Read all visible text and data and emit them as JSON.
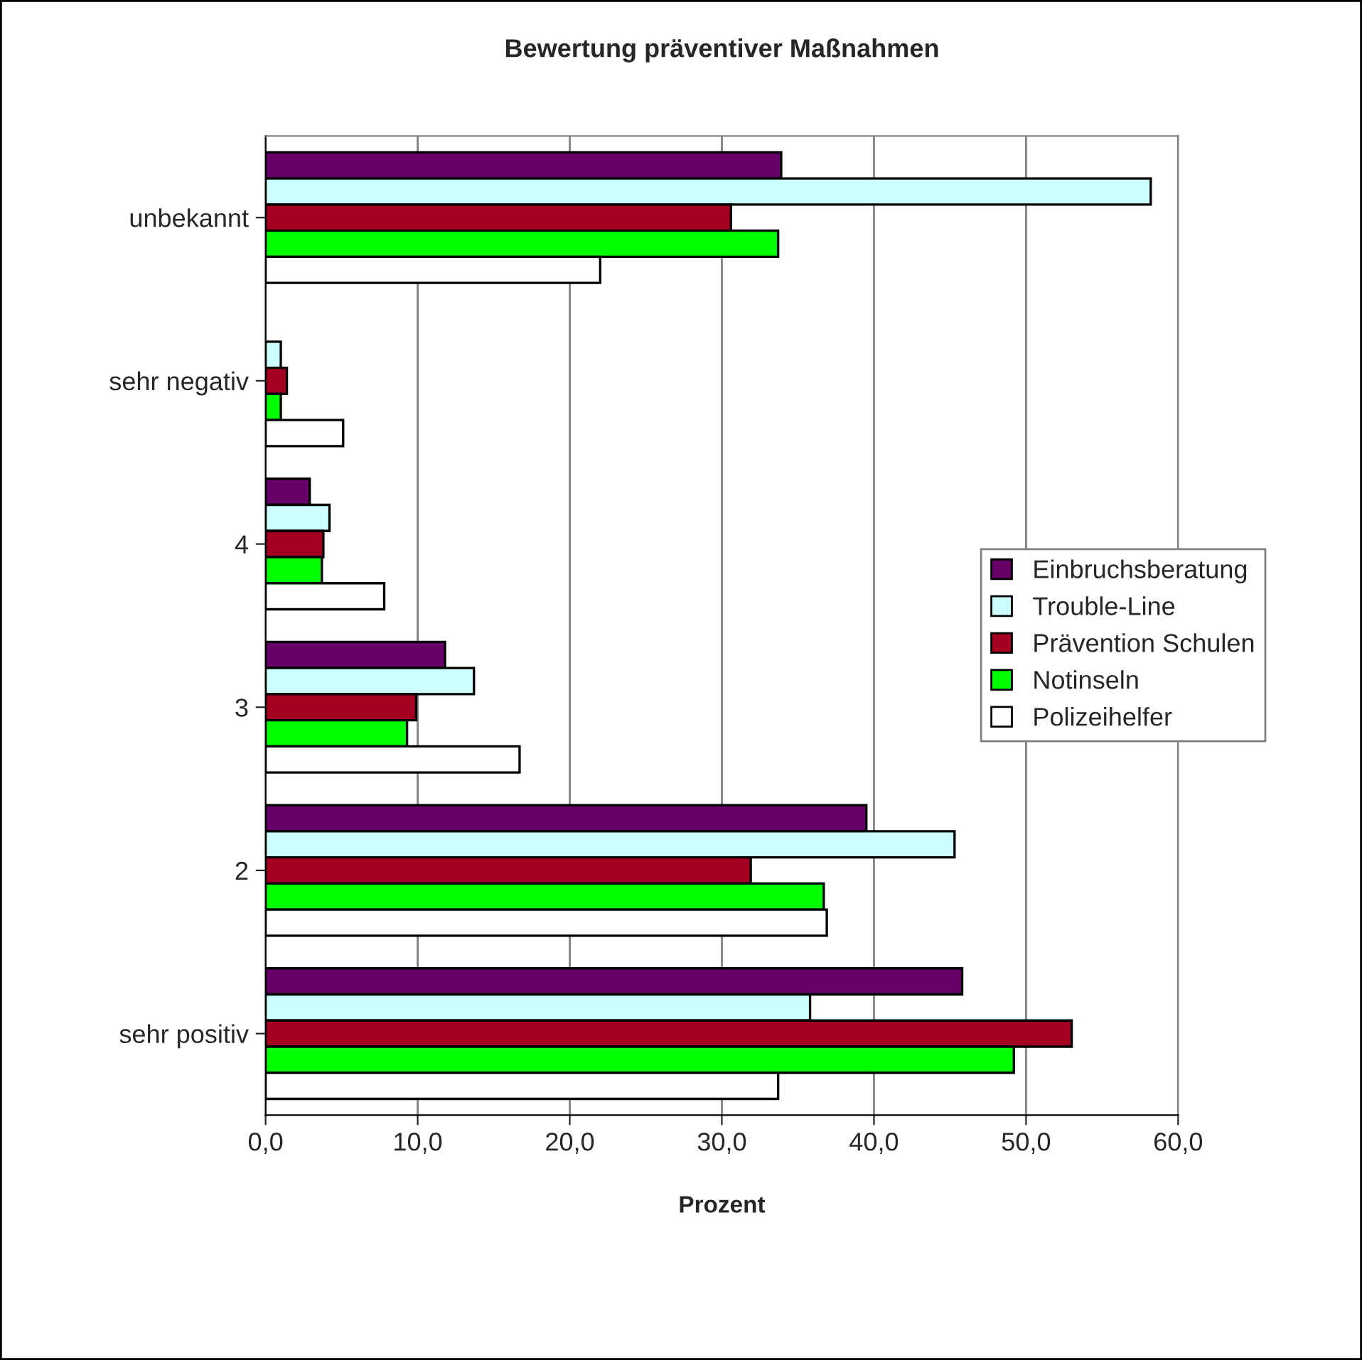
{
  "chart_data": {
    "type": "bar",
    "orientation": "horizontal",
    "title": "Bewertung präventiver Maßnahmen",
    "xlabel": "Prozent",
    "categories": [
      "unbekannt",
      "sehr negativ",
      "4",
      "3",
      "2",
      "sehr positiv"
    ],
    "series": [
      {
        "name": "Einbruchsberatung",
        "color": "#660066",
        "values": [
          33.9,
          null,
          2.9,
          11.8,
          39.5,
          45.8
        ]
      },
      {
        "name": "Trouble-Line",
        "color": "#ccffff",
        "values": [
          58.2,
          1.0,
          4.2,
          13.7,
          45.3,
          35.8
        ]
      },
      {
        "name": "Prävention Schulen",
        "color": "#a50021",
        "values": [
          30.6,
          1.4,
          3.8,
          9.9,
          31.9,
          53.0
        ]
      },
      {
        "name": "Notinseln",
        "color": "#00ff00",
        "values": [
          33.7,
          1.0,
          3.7,
          9.3,
          36.7,
          49.2
        ]
      },
      {
        "name": "Polizeihelfer",
        "color": "#ffffff",
        "values": [
          22.0,
          5.1,
          7.8,
          16.7,
          36.9,
          33.7
        ]
      }
    ],
    "xlim": [
      0,
      60
    ],
    "xticks": [
      {
        "value": 0,
        "label": "0,0"
      },
      {
        "value": 10,
        "label": "10,0"
      },
      {
        "value": 20,
        "label": "20,0"
      },
      {
        "value": 30,
        "label": "30,0"
      },
      {
        "value": 40,
        "label": "40,0"
      },
      {
        "value": 50,
        "label": "50,0"
      },
      {
        "value": 60,
        "label": "60,0"
      }
    ],
    "grid": "x",
    "legend": "right"
  }
}
